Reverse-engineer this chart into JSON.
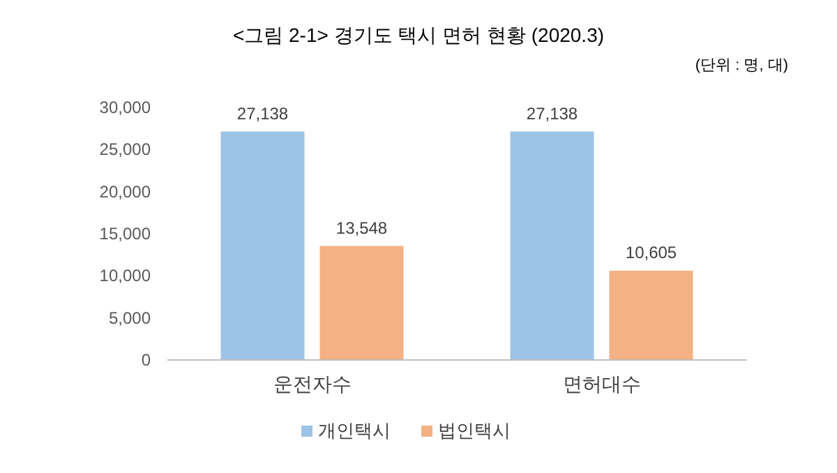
{
  "chart_data": {
    "type": "bar",
    "title": "<그림 2-1> 경기도 택시 면허 현황 (2020.3)",
    "subtitle": "(단위 : 명, 대)",
    "categories": [
      "운전자수",
      "면허대수"
    ],
    "series": [
      {
        "name": "개인택시",
        "color": "#9dc3e6",
        "values": [
          27138,
          27138
        ],
        "value_labels": [
          "27,138",
          "27,138"
        ]
      },
      {
        "name": "법인택시",
        "color": "#f4b183",
        "values": [
          13548,
          10605
        ],
        "value_labels": [
          "13,548",
          "10,605"
        ]
      }
    ],
    "ylim": [
      0,
      30000
    ],
    "yticks": [
      {
        "value": 0,
        "label": "0"
      },
      {
        "value": 5000,
        "label": "5,000"
      },
      {
        "value": 10000,
        "label": "10,000"
      },
      {
        "value": 15000,
        "label": "15,000"
      },
      {
        "value": 20000,
        "label": "20,000"
      },
      {
        "value": 25000,
        "label": "25,000"
      },
      {
        "value": 30000,
        "label": "30,000"
      }
    ],
    "grid": false,
    "legend": "bottom"
  }
}
